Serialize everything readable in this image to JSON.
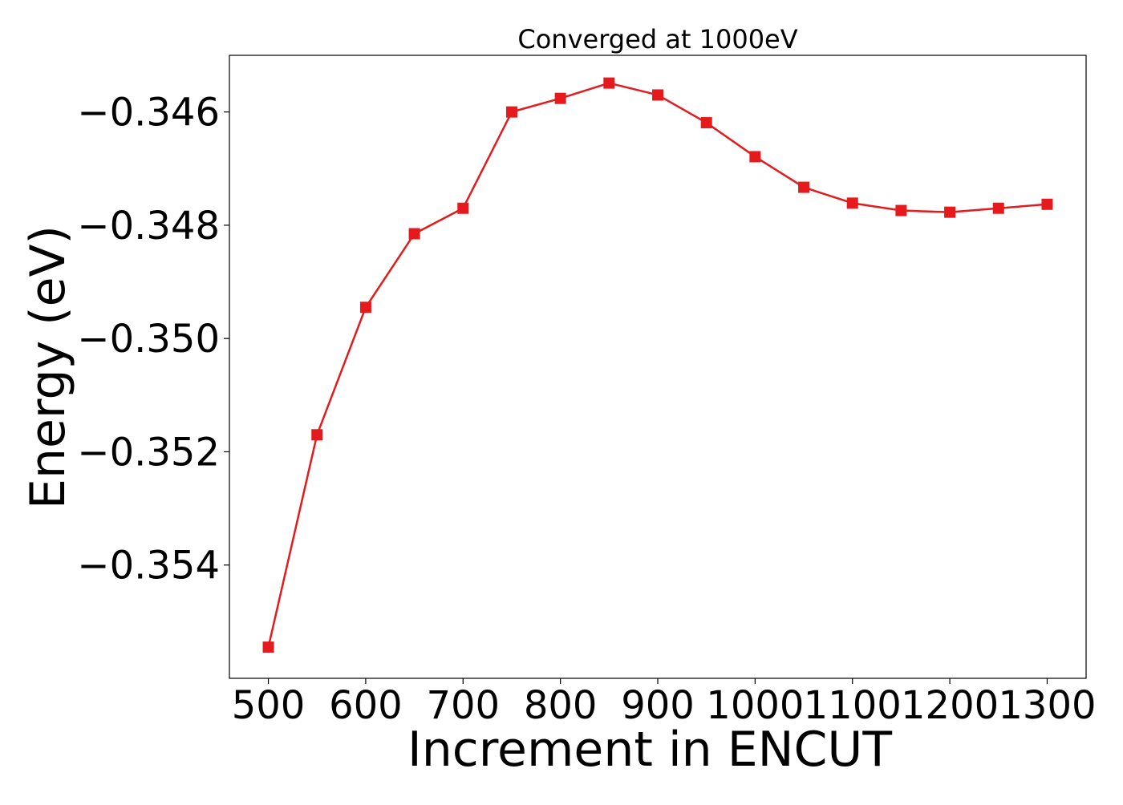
{
  "chart_data": {
    "type": "line",
    "title": "Converged at 1000eV",
    "xlabel": "Increment in ENCUT",
    "ylabel": "Energy (eV)",
    "x": [
      500,
      550,
      600,
      650,
      700,
      750,
      800,
      850,
      900,
      950,
      1000,
      1050,
      1100,
      1150,
      1200,
      1250,
      1300
    ],
    "series": [
      {
        "values": [
          -0.35545,
          -0.3517,
          -0.34945,
          -0.34815,
          -0.3477,
          -0.346,
          -0.34576,
          -0.34549,
          -0.3457,
          -0.34619,
          -0.34679,
          -0.34733,
          -0.34761,
          -0.34774,
          -0.34777,
          -0.3477,
          -0.34763
        ],
        "color": "#e41a1c",
        "marker": "square"
      }
    ],
    "xticks": [
      500,
      600,
      700,
      800,
      900,
      1000,
      1100,
      1200,
      1300
    ],
    "xtick_labels": [
      "500",
      "600",
      "700",
      "800",
      "900",
      "1000",
      "1100",
      "1200",
      "1300"
    ],
    "yticks": [
      -0.346,
      -0.348,
      -0.35,
      -0.352,
      -0.354
    ],
    "ytick_labels": [
      "−0.346",
      "−0.348",
      "−0.350",
      "−0.352",
      "−0.354"
    ],
    "xlim": [
      460,
      1340
    ],
    "ylim": [
      -0.356,
      -0.345
    ],
    "grid": false,
    "legend": "none"
  }
}
